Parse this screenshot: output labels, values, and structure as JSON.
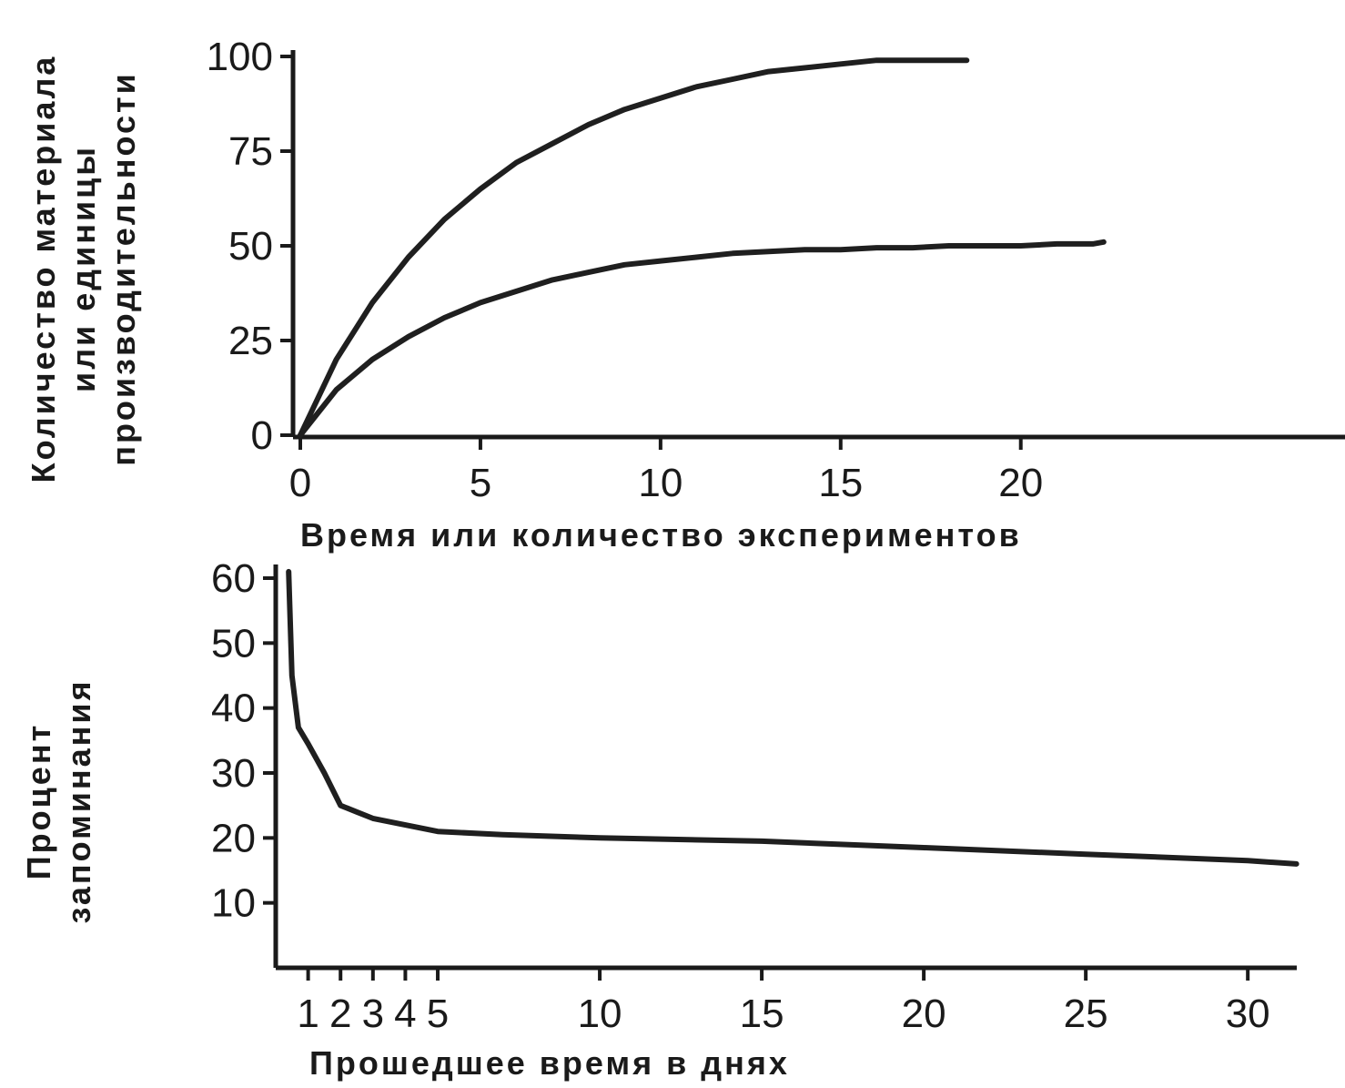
{
  "chart_data": [
    {
      "type": "line",
      "title": "",
      "xlabel": "Время или количество экспериментов",
      "ylabel_lines": [
        "Количество материала",
        "или единицы",
        "производительности"
      ],
      "xlim": [
        0,
        29
      ],
      "ylim": [
        0,
        100
      ],
      "x_ticks": [
        0,
        5,
        10,
        15,
        20
      ],
      "y_ticks": [
        0,
        25,
        50,
        75,
        100
      ],
      "grid": false,
      "series": [
        {
          "x": [
            0,
            1,
            2,
            3,
            4,
            5,
            6,
            7,
            8,
            9,
            10,
            11,
            12,
            13,
            14,
            15,
            16,
            17,
            18,
            18.5
          ],
          "y": [
            0,
            20,
            35,
            47,
            57,
            65,
            72,
            77,
            82,
            86,
            89,
            92,
            94,
            96,
            97,
            98,
            99,
            99,
            99,
            99
          ]
        },
        {
          "x": [
            0,
            1,
            2,
            3,
            4,
            5,
            6,
            7,
            8,
            9,
            10,
            11,
            12,
            13,
            14,
            15,
            16,
            17,
            18,
            19,
            20,
            21,
            22,
            22.3
          ],
          "y": [
            0,
            12,
            20,
            26,
            31,
            35,
            38,
            41,
            43,
            45,
            46,
            47,
            48,
            48.5,
            49,
            49,
            49.5,
            49.5,
            50,
            50,
            50,
            50.5,
            50.5,
            51
          ]
        }
      ]
    },
    {
      "type": "line",
      "title": "",
      "xlabel": "Прошедшее время в днях",
      "ylabel_lines": [
        "Процент",
        "запоминания"
      ],
      "xlim": [
        0,
        33
      ],
      "ylim": [
        0,
        60
      ],
      "x_ticks": [
        1,
        2,
        3,
        4,
        5,
        10,
        15,
        20,
        25,
        30
      ],
      "x_tick_labels": [
        "1",
        "2",
        "3",
        "4",
        "5",
        "10",
        "15",
        "20",
        "25",
        "30"
      ],
      "y_ticks": [
        10,
        20,
        30,
        40,
        50,
        60
      ],
      "grid": false,
      "series": [
        {
          "x": [
            0.4,
            0.5,
            0.7,
            1,
            1.5,
            2,
            2.5,
            3,
            4,
            5,
            7,
            10,
            15,
            20,
            25,
            30,
            31.5
          ],
          "y": [
            61,
            45,
            37,
            34.5,
            30,
            25,
            24,
            23,
            22,
            21,
            20.5,
            20,
            19.5,
            18.5,
            17.5,
            16.5,
            16
          ]
        }
      ]
    }
  ]
}
